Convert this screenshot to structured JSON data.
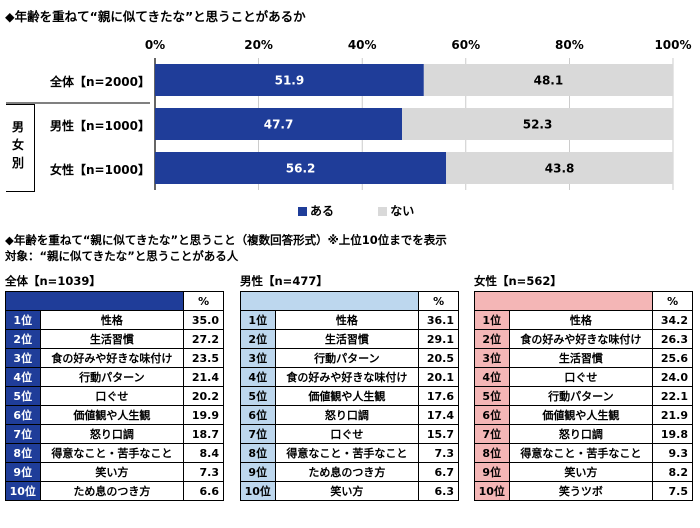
{
  "top_chart": {
    "title": "◆年齢を重ねて“親に似てきたな”と思うことがあるか",
    "axis_ticks": [
      "0%",
      "20%",
      "40%",
      "60%",
      "80%",
      "100%"
    ],
    "group_label": "男女別",
    "legend": [
      {
        "label": "ある",
        "color": "#1f3d99"
      },
      {
        "label": "ない",
        "color": "#d9d9d9"
      }
    ]
  },
  "chart_data": {
    "type": "bar",
    "orientation": "horizontal",
    "stacked": true,
    "categories": [
      "全体【n=2000】",
      "男性【n=1000】",
      "女性【n=1000】"
    ],
    "series": [
      {
        "name": "ある",
        "values": [
          51.9,
          47.7,
          56.2
        ],
        "color": "#1f3d99"
      },
      {
        "name": "ない",
        "values": [
          48.1,
          52.3,
          43.8
        ],
        "color": "#d9d9d9"
      }
    ],
    "xlim": [
      0,
      100
    ],
    "grid": true,
    "legend_position": "bottom"
  },
  "ranking": {
    "title": "◆年齢を重ねて“親に似てきたな”と思うこと（複数回答形式）※上位10位までを表示",
    "subtitle": "対象：“親に似てきたな”と思うことがある人",
    "pct_header": "%",
    "tables": [
      {
        "title": "全体【n=1039】",
        "colors": {
          "pos": "#1f3d99",
          "header": "#1f3d99",
          "header_pct": "#ffffff",
          "pos_text": "#ffffff"
        },
        "rows": [
          {
            "rank": "1位",
            "item": "性格",
            "value": "35.0"
          },
          {
            "rank": "2位",
            "item": "生活習慣",
            "value": "27.2"
          },
          {
            "rank": "3位",
            "item": "食の好みや好きな味付け",
            "value": "23.5"
          },
          {
            "rank": "4位",
            "item": "行動パターン",
            "value": "21.4"
          },
          {
            "rank": "5位",
            "item": "口ぐせ",
            "value": "20.2"
          },
          {
            "rank": "6位",
            "item": "価値観や人生観",
            "value": "19.9"
          },
          {
            "rank": "7位",
            "item": "怒り口調",
            "value": "18.7"
          },
          {
            "rank": "8位",
            "item": "得意なこと・苦手なこと",
            "value": "8.4"
          },
          {
            "rank": "9位",
            "item": "笑い方",
            "value": "7.3"
          },
          {
            "rank": "10位",
            "item": "ため息のつき方",
            "value": "6.6"
          }
        ]
      },
      {
        "title": "男性【n=477】",
        "colors": {
          "pos": "#bdd7ee",
          "header": "#bdd7ee",
          "header_pct": "#ffffff",
          "pos_text": "#000000"
        },
        "rows": [
          {
            "rank": "1位",
            "item": "性格",
            "value": "36.1"
          },
          {
            "rank": "2位",
            "item": "生活習慣",
            "value": "29.1"
          },
          {
            "rank": "3位",
            "item": "行動パターン",
            "value": "20.5"
          },
          {
            "rank": "4位",
            "item": "食の好みや好きな味付け",
            "value": "20.1"
          },
          {
            "rank": "5位",
            "item": "価値観や人生観",
            "value": "17.6"
          },
          {
            "rank": "6位",
            "item": "怒り口調",
            "value": "17.4"
          },
          {
            "rank": "7位",
            "item": "口ぐせ",
            "value": "15.7"
          },
          {
            "rank": "8位",
            "item": "得意なこと・苦手なこと",
            "value": "7.3"
          },
          {
            "rank": "9位",
            "item": "ため息のつき方",
            "value": "6.7"
          },
          {
            "rank": "10位",
            "item": "笑い方",
            "value": "6.3"
          }
        ]
      },
      {
        "title": "女性【n=562】",
        "colors": {
          "pos": "#f4b6b6",
          "header": "#f4b6b6",
          "header_pct": "#ffffff",
          "pos_text": "#000000"
        },
        "rows": [
          {
            "rank": "1位",
            "item": "性格",
            "value": "34.2"
          },
          {
            "rank": "2位",
            "item": "食の好みや好きな味付け",
            "value": "26.3"
          },
          {
            "rank": "3位",
            "item": "生活習慣",
            "value": "25.6"
          },
          {
            "rank": "4位",
            "item": "口ぐせ",
            "value": "24.0"
          },
          {
            "rank": "5位",
            "item": "行動パターン",
            "value": "22.1"
          },
          {
            "rank": "6位",
            "item": "価値観や人生観",
            "value": "21.9"
          },
          {
            "rank": "7位",
            "item": "怒り口調",
            "value": "19.8"
          },
          {
            "rank": "8位",
            "item": "得意なこと・苦手なこと",
            "value": "9.3"
          },
          {
            "rank": "9位",
            "item": "笑い方",
            "value": "8.2"
          },
          {
            "rank": "10位",
            "item": "笑うツボ",
            "value": "7.5"
          }
        ]
      }
    ]
  }
}
